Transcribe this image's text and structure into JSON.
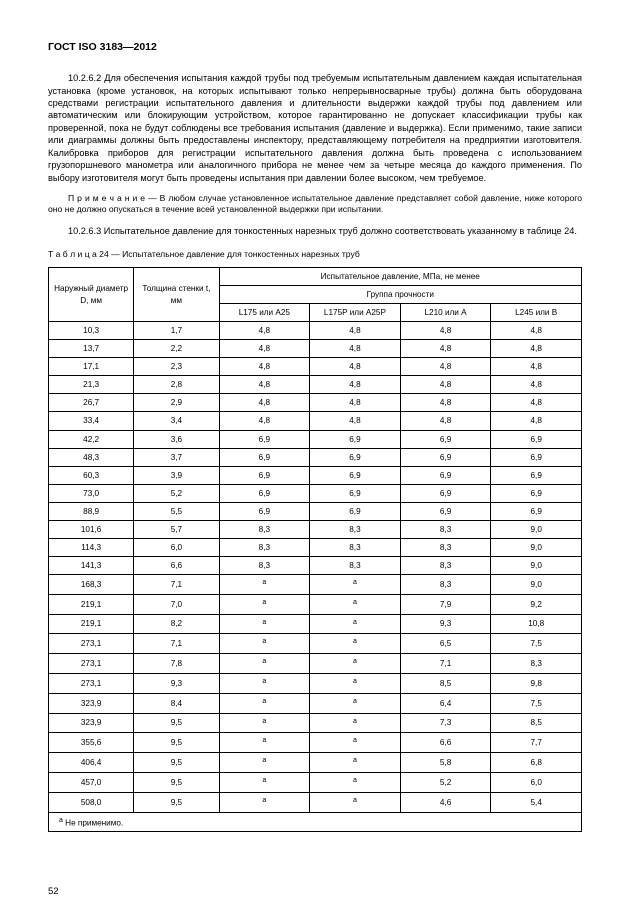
{
  "header": "ГОСТ ISO 3183—2012",
  "para1": "10.2.6.2 Для обеспечения испытания каждой трубы под требуемым испытательным давлением каждая испытательная установка (кроме установок, на которых испытывают только непрерывносварные трубы) должна быть оборудована средствами регистрации испытательного давления и длительности выдержки каждой трубы под давлением или автоматическим или блокирующим устройством, которое гарантированно не допускает классификации трубы как проверенной, пока не будут соблюдены все требования испытания (давление и выдержка). Если применимо, такие записи или диаграммы должны быть предоставлены инспектору, представляющему потребителя на предприятии изготовителя. Калибровка приборов для регистрации испытательного давления должна быть проведена с использованием грузопоршневого манометра или аналогичного прибора не менее чем за четыре месяца до каждого применения. По выбору изготовителя могут быть проведены испытания при давлении более высоком, чем требуемое.",
  "note_label": "П р и м е ч а н и е",
  "note_body": " — В любом случае  установленное испытательное давление представляет собой давление, ниже которого оно не должно опускаться в течение всей установленной выдержки при испытании.",
  "para2": "10.2.6.3 Испытательное давление для тонкостенных нарезных труб должно соответствовать указанному в таблице 24.",
  "table_caption_label": "Т а б л и ц а 24",
  "table_caption_body": " — Испытательное давление для тонкостенных нарезных труб",
  "table": {
    "col1_header": "Наружный диаметр D, мм",
    "col2_header": "Толщина стенки t, мм",
    "top_header": "Испытательное давление, МПа, не менее",
    "group_header": "Группа прочности",
    "groups": [
      "L175 или A25",
      "L175P или A25P",
      "L210 или A",
      "L245 или B"
    ],
    "rows": [
      {
        "d": "10,3",
        "t": "1,7",
        "v": [
          "4,8",
          "4,8",
          "4,8",
          "4,8"
        ]
      },
      {
        "d": "13,7",
        "t": "2,2",
        "v": [
          "4,8",
          "4,8",
          "4,8",
          "4,8"
        ]
      },
      {
        "d": "17,1",
        "t": "2,3",
        "v": [
          "4,8",
          "4,8",
          "4,8",
          "4,8"
        ]
      },
      {
        "d": "21,3",
        "t": "2,8",
        "v": [
          "4,8",
          "4,8",
          "4,8",
          "4,8"
        ]
      },
      {
        "d": "26,7",
        "t": "2,9",
        "v": [
          "4,8",
          "4,8",
          "4,8",
          "4,8"
        ]
      },
      {
        "d": "33,4",
        "t": "3,4",
        "v": [
          "4,8",
          "4,8",
          "4,8",
          "4,8"
        ]
      },
      {
        "d": "42,2",
        "t": "3,6",
        "v": [
          "6,9",
          "6,9",
          "6,9",
          "6,9"
        ]
      },
      {
        "d": "48,3",
        "t": "3,7",
        "v": [
          "6,9",
          "6,9",
          "6,9",
          "6,9"
        ]
      },
      {
        "d": "60,3",
        "t": "3,9",
        "v": [
          "6,9",
          "6,9",
          "6,9",
          "6,9"
        ]
      },
      {
        "d": "73,0",
        "t": "5,2",
        "v": [
          "6,9",
          "6,9",
          "6,9",
          "6,9"
        ]
      },
      {
        "d": "88,9",
        "t": "5,5",
        "v": [
          "6,9",
          "6,9",
          "6,9",
          "6,9"
        ]
      },
      {
        "d": "101,6",
        "t": "5,7",
        "v": [
          "8,3",
          "8,3",
          "8,3",
          "9,0"
        ]
      },
      {
        "d": "114,3",
        "t": "6,0",
        "v": [
          "8,3",
          "8,3",
          "8,3",
          "9,0"
        ]
      },
      {
        "d": "141,3",
        "t": "6,6",
        "v": [
          "8,3",
          "8,3",
          "8,3",
          "9,0"
        ]
      },
      {
        "d": "168,3",
        "t": "7,1",
        "v": [
          "a",
          "a",
          "8,3",
          "9,0"
        ]
      },
      {
        "d": "219,1",
        "t": "7,0",
        "v": [
          "a",
          "a",
          "7,9",
          "9,2"
        ]
      },
      {
        "d": "219,1",
        "t": "8,2",
        "v": [
          "a",
          "a",
          "9,3",
          "10,8"
        ]
      },
      {
        "d": "273,1",
        "t": "7,1",
        "v": [
          "a",
          "a",
          "6,5",
          "7,5"
        ]
      },
      {
        "d": "273,1",
        "t": "7,8",
        "v": [
          "a",
          "a",
          "7,1",
          "8,3"
        ]
      },
      {
        "d": "273,1",
        "t": "9,3",
        "v": [
          "a",
          "a",
          "8,5",
          "9,8"
        ]
      },
      {
        "d": "323,9",
        "t": "8,4",
        "v": [
          "a",
          "a",
          "6,4",
          "7,5"
        ]
      },
      {
        "d": "323,9",
        "t": "9,5",
        "v": [
          "a",
          "a",
          "7,3",
          "8,5"
        ]
      },
      {
        "d": "355,6",
        "t": "9,5",
        "v": [
          "a",
          "a",
          "6,6",
          "7,7"
        ]
      },
      {
        "d": "406,4",
        "t": "9,5",
        "v": [
          "a",
          "a",
          "5,8",
          "6,8"
        ]
      },
      {
        "d": "457,0",
        "t": "9,5",
        "v": [
          "a",
          "a",
          "5,2",
          "6,0"
        ]
      },
      {
        "d": "508,0",
        "t": "9,5",
        "v": [
          "a",
          "a",
          "4,6",
          "5,4"
        ]
      }
    ],
    "footnote_marker": "a",
    "footnote": " Не применимо."
  },
  "pagenum": "52"
}
